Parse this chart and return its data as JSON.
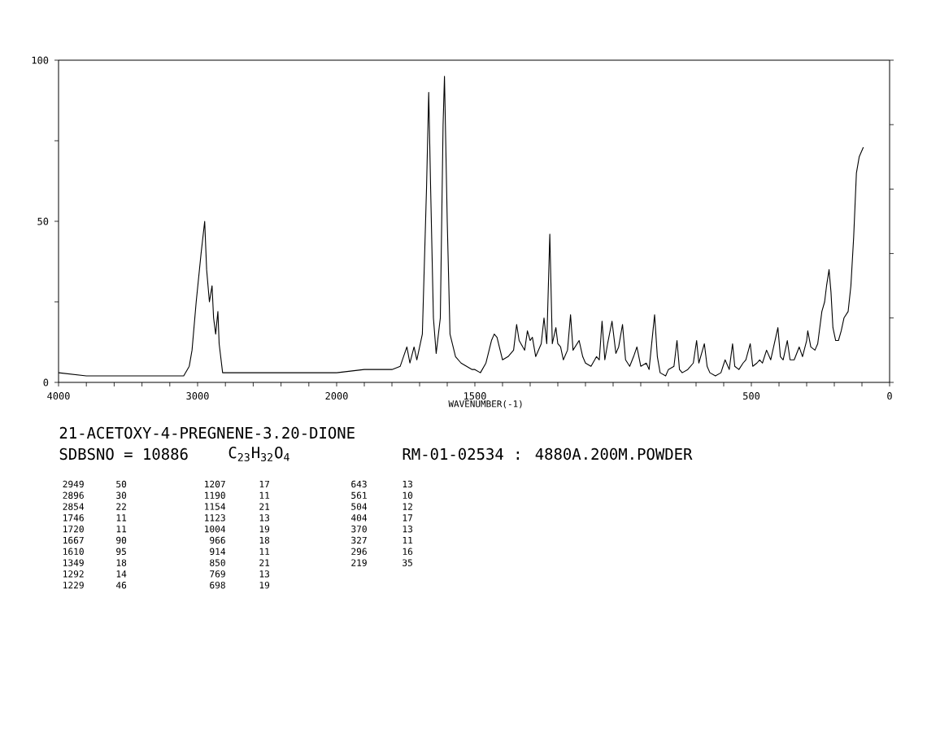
{
  "chart_data": [
    {
      "type": "line",
      "title": "21-ACETOXY-4-PREGNENE-3.20-DIONE",
      "subtitle": "SDBSNO = 10886",
      "annotations": [
        "C$_{23}$H$_{32}$O$_{4}$",
        "RM-01-02534 : 4880A.200M.POWDER",
        "2949",
        "50",
        "2896",
        "30",
        "2854",
        "22",
        "1746",
        "11",
        "1720",
        "11",
        "1667",
        "90",
        "1610",
        "95",
        "1349",
        "18",
        "1292",
        "14",
        "1229",
        "46",
        "1207",
        "17",
        "1190",
        "11",
        "1154",
        "21",
        "1123",
        "13",
        "1004",
        "19",
        "966",
        "18",
        "914",
        "11",
        "850",
        "21",
        "769",
        "13",
        "698",
        "19",
        "643",
        "13",
        "561",
        "10",
        "504",
        "12",
        "404",
        "17",
        "370",
        "13",
        "327",
        "11",
        "296",
        "16",
        "219",
        "35"
      ],
      "xlim": [
        4000,
        2000
      ],
      "ylim": [
        0,
        100
      ],
      "xticks": [
        4000,
        {
          "value": 3800,
          "label": null
        },
        {
          "value": 3600,
          "label": null
        },
        {
          "value": 3400,
          "label": null
        },
        {
          "value": 3200,
          "label": null
        },
        3000,
        {
          "value": 2800,
          "label": null
        },
        {
          "value": 2600,
          "label": null
        },
        {
          "value": 2400,
          "label": null
        },
        {
          "value": 2200,
          "label": null
        },
        2000
      ],
      "yticks": [
        0,
        {
          "value": 25,
          "label": null
        },
        50,
        {
          "value": 75,
          "label": null
        },
        100
      ],
      "color": "#000000",
      "x": [
        4000,
        3800,
        3600,
        3400,
        3200,
        3100,
        3060,
        3040,
        3010,
        2975,
        2949,
        2935,
        2915,
        2896,
        2885,
        2870,
        2854,
        2845,
        2820,
        2800,
        2600,
        2400,
        2200,
        2100,
        2000
      ],
      "values": [
        3,
        2,
        2,
        2,
        2,
        2,
        5,
        10,
        25,
        40,
        50,
        35,
        25,
        30,
        20,
        15,
        22,
        12,
        3,
        3,
        3,
        3,
        3,
        3,
        3
      ]
    },
    {
      "type": "line",
      "xlabel": "WAVENUMBER(-1)",
      "xlim": [
        2000,
        0
      ],
      "ylim": [
        0,
        100
      ],
      "tick_labels": "x",
      "xticks": [
        {
          "value": 1900,
          "label": null
        },
        {
          "value": 1800,
          "label": null
        },
        {
          "value": 1700,
          "label": null
        },
        {
          "value": 1600,
          "label": null
        },
        1500,
        {
          "value": 1400,
          "label": null
        },
        {
          "value": 1300,
          "label": null
        },
        {
          "value": 1200,
          "label": null
        },
        {
          "value": 1100,
          "label": null
        },
        {
          "value": 1000,
          "label": null
        },
        {
          "value": 900,
          "label": null
        },
        {
          "value": 800,
          "label": null
        },
        {
          "value": 700,
          "label": null
        },
        {
          "value": 600,
          "label": null
        },
        500,
        {
          "value": 400,
          "label": null
        },
        {
          "value": 300,
          "label": null
        },
        {
          "value": 200,
          "label": null
        },
        {
          "value": 100,
          "label": null
        },
        0
      ],
      "color": "#000000",
      "x": [
        2000,
        1900,
        1800,
        1770,
        1746,
        1735,
        1720,
        1710,
        1690,
        1675,
        1667,
        1660,
        1650,
        1640,
        1625,
        1615,
        1610,
        1600,
        1590,
        1570,
        1550,
        1530,
        1510,
        1500,
        1480,
        1460,
        1440,
        1430,
        1420,
        1400,
        1380,
        1360,
        1349,
        1340,
        1320,
        1310,
        1300,
        1292,
        1280,
        1260,
        1250,
        1240,
        1229,
        1220,
        1207,
        1200,
        1190,
        1180,
        1165,
        1154,
        1145,
        1123,
        1110,
        1100,
        1080,
        1060,
        1050,
        1040,
        1030,
        1020,
        1004,
        990,
        980,
        966,
        955,
        940,
        926,
        914,
        900,
        880,
        870,
        850,
        840,
        830,
        810,
        800,
        780,
        769,
        760,
        750,
        730,
        710,
        698,
        690,
        680,
        670,
        660,
        650,
        630,
        610,
        595,
        580,
        568,
        560,
        545,
        530,
        520,
        504,
        495,
        480,
        470,
        460,
        445,
        430,
        404,
        395,
        385,
        370,
        360,
        345,
        327,
        315,
        300,
        296,
        285,
        270,
        260,
        245,
        235,
        228,
        219,
        212,
        205,
        195,
        185,
        175,
        165,
        150,
        140,
        130,
        120,
        110,
        95
      ],
      "values": [
        3,
        4,
        4,
        5,
        11,
        6,
        11,
        7,
        15,
        60,
        90,
        60,
        20,
        9,
        20,
        80,
        95,
        50,
        15,
        8,
        6,
        5,
        4,
        4,
        3,
        6,
        13,
        15,
        14,
        7,
        8,
        10,
        18,
        13,
        10,
        16,
        13,
        14,
        8,
        12,
        20,
        12,
        46,
        12,
        17,
        12,
        11,
        7,
        10,
        21,
        10,
        13,
        8,
        6,
        5,
        8,
        7,
        19,
        7,
        12,
        19,
        9,
        11,
        18,
        7,
        5,
        8,
        11,
        5,
        6,
        4,
        21,
        8,
        3,
        2,
        4,
        5,
        13,
        4,
        3,
        4,
        6,
        13,
        6,
        9,
        12,
        5,
        3,
        2,
        3,
        7,
        4,
        12,
        5,
        4,
        6,
        7,
        12,
        5,
        6,
        7,
        6,
        10,
        7,
        17,
        8,
        7,
        13,
        7,
        7,
        11,
        8,
        13,
        16,
        11,
        10,
        12,
        22,
        25,
        30,
        35,
        28,
        17,
        13,
        13,
        16,
        20,
        22,
        30,
        45,
        65,
        70,
        73
      ]
    }
  ]
}
